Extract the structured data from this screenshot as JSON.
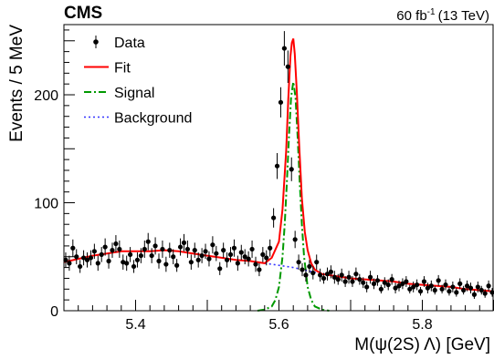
{
  "header": {
    "experiment": "CMS",
    "lumi_value": "60 fb",
    "lumi_exp": "-1",
    "lumi_energy": "(13 TeV)"
  },
  "chart_data": {
    "type": "scatter",
    "xlabel": "M(ψ(2S) Λ) [GeV]",
    "ylabel": "Events / 5 MeV",
    "xlim": [
      5.3,
      5.9
    ],
    "ylim": [
      0,
      265
    ],
    "x_ticks": [
      5.4,
      5.6,
      5.8
    ],
    "x_tick_labels": [
      "5.4",
      "5.6",
      "5.8"
    ],
    "y_ticks": [
      0,
      100,
      200
    ],
    "y_tick_labels": [
      "0",
      "100",
      "200"
    ],
    "grid": false,
    "legend_position": "top-left",
    "legend": [
      {
        "label": "Data",
        "style": "points-with-errors",
        "color": "#000000"
      },
      {
        "label": "Fit",
        "style": "solid",
        "color": "#ff0000"
      },
      {
        "label": "Signal",
        "style": "dash-dot",
        "color": "#009900"
      },
      {
        "label": "Background",
        "style": "dotted",
        "color": "#3333ff"
      }
    ],
    "series": [
      {
        "name": "Data",
        "x": [
          5.3025,
          5.3075,
          5.3125,
          5.3175,
          5.3225,
          5.3275,
          5.3325,
          5.3375,
          5.3425,
          5.3475,
          5.3525,
          5.3575,
          5.3625,
          5.3675,
          5.3725,
          5.3775,
          5.3825,
          5.3875,
          5.3925,
          5.3975,
          5.4025,
          5.4075,
          5.4125,
          5.4175,
          5.4225,
          5.4275,
          5.4325,
          5.4375,
          5.4425,
          5.4475,
          5.4525,
          5.4575,
          5.4625,
          5.4675,
          5.4725,
          5.4775,
          5.4825,
          5.4875,
          5.4925,
          5.4975,
          5.5025,
          5.5075,
          5.5125,
          5.5175,
          5.5225,
          5.5275,
          5.5325,
          5.5375,
          5.5425,
          5.5475,
          5.5525,
          5.5575,
          5.5625,
          5.5675,
          5.5725,
          5.5775,
          5.5825,
          5.5875,
          5.5925,
          5.5975,
          5.6025,
          5.6075,
          5.6125,
          5.6175,
          5.6225,
          5.6275,
          5.6325,
          5.6375,
          5.6425,
          5.6475,
          5.6525,
          5.6575,
          5.6625,
          5.6675,
          5.6725,
          5.6775,
          5.6825,
          5.6875,
          5.6925,
          5.6975,
          5.7025,
          5.7075,
          5.7125,
          5.7175,
          5.7225,
          5.7275,
          5.7325,
          5.7375,
          5.7425,
          5.7475,
          5.7525,
          5.7575,
          5.7625,
          5.7675,
          5.7725,
          5.7775,
          5.7825,
          5.7875,
          5.7925,
          5.7975,
          5.8025,
          5.8075,
          5.8125,
          5.8175,
          5.8225,
          5.8275,
          5.8325,
          5.8375,
          5.8425,
          5.8475,
          5.8525,
          5.8575,
          5.8625,
          5.8675,
          5.8725,
          5.8775,
          5.8825,
          5.8875,
          5.8925,
          5.8975
        ],
        "values": [
          47,
          44,
          58,
          50,
          41,
          49,
          47,
          49,
          55,
          44,
          52,
          59,
          46,
          56,
          62,
          57,
          45,
          44,
          52,
          41,
          47,
          51,
          57,
          64,
          51,
          60,
          46,
          57,
          43,
          56,
          50,
          42,
          59,
          63,
          57,
          45,
          56,
          47,
          51,
          55,
          48,
          61,
          53,
          39,
          56,
          47,
          52,
          58,
          44,
          54,
          50,
          48,
          57,
          43,
          38,
          52,
          49,
          58,
          86,
          134,
          193,
          243,
          226,
          131,
          66,
          45,
          38,
          33,
          41,
          35,
          45,
          33,
          30,
          34,
          36,
          31,
          29,
          33,
          27,
          31,
          27,
          34,
          29,
          26,
          22,
          31,
          25,
          28,
          20,
          26,
          24,
          29,
          21,
          23,
          25,
          27,
          20,
          22,
          24,
          18,
          27,
          21,
          23,
          19,
          28,
          20,
          24,
          18,
          22,
          17,
          25,
          19,
          23,
          21,
          15,
          22,
          19,
          16,
          23,
          17
        ],
        "errors": [
          7,
          7,
          8,
          7,
          6,
          7,
          7,
          7,
          7,
          7,
          7,
          8,
          7,
          7,
          8,
          8,
          7,
          7,
          7,
          6,
          7,
          7,
          8,
          8,
          7,
          8,
          7,
          8,
          7,
          7,
          7,
          6,
          8,
          8,
          8,
          7,
          7,
          7,
          7,
          7,
          7,
          8,
          7,
          6,
          7,
          7,
          7,
          8,
          7,
          7,
          7,
          7,
          8,
          7,
          6,
          7,
          7,
          8,
          9,
          12,
          14,
          16,
          15,
          11,
          8,
          7,
          6,
          6,
          6,
          6,
          7,
          6,
          5,
          6,
          6,
          6,
          5,
          6,
          5,
          6,
          5,
          6,
          5,
          5,
          5,
          6,
          5,
          5,
          4,
          5,
          5,
          5,
          5,
          5,
          5,
          5,
          4,
          5,
          5,
          4,
          5,
          5,
          5,
          4,
          5,
          4,
          5,
          4,
          5,
          4,
          5,
          4,
          5,
          5,
          4,
          5,
          4,
          4,
          5,
          4
        ]
      },
      {
        "name": "Fit",
        "x": [
          5.3,
          5.32,
          5.34,
          5.36,
          5.38,
          5.4,
          5.42,
          5.44,
          5.46,
          5.48,
          5.5,
          5.52,
          5.54,
          5.56,
          5.58,
          5.59,
          5.6,
          5.605,
          5.61,
          5.613,
          5.616,
          5.618,
          5.62,
          5.622,
          5.625,
          5.628,
          5.632,
          5.636,
          5.64,
          5.645,
          5.65,
          5.66,
          5.68,
          5.7,
          5.72,
          5.74,
          5.76,
          5.78,
          5.8,
          5.82,
          5.84,
          5.86,
          5.88,
          5.9
        ],
        "values": [
          45,
          48,
          51,
          53,
          55,
          55,
          55,
          56,
          55,
          53,
          51,
          49,
          47,
          46,
          44,
          49,
          64,
          94,
          148,
          196,
          236,
          248,
          252,
          238,
          202,
          156,
          104,
          73,
          56,
          44,
          38,
          34,
          32,
          30,
          29,
          28,
          27,
          25,
          24,
          23,
          22,
          20,
          19,
          18
        ]
      },
      {
        "name": "Signal",
        "x": [
          5.57,
          5.58,
          5.59,
          5.595,
          5.6,
          5.605,
          5.608,
          5.611,
          5.614,
          5.617,
          5.62,
          5.623,
          5.626,
          5.629,
          5.632,
          5.635,
          5.64,
          5.645,
          5.65,
          5.66,
          5.67
        ],
        "values": [
          0,
          1,
          4,
          10,
          22,
          50,
          80,
          118,
          162,
          198,
          212,
          198,
          162,
          118,
          80,
          50,
          22,
          10,
          4,
          1,
          0
        ]
      },
      {
        "name": "Background",
        "x": [
          5.58,
          5.6,
          5.62,
          5.64,
          5.66,
          5.68,
          5.7
        ],
        "values": [
          44,
          42,
          40,
          37,
          34,
          32,
          30
        ]
      }
    ]
  }
}
